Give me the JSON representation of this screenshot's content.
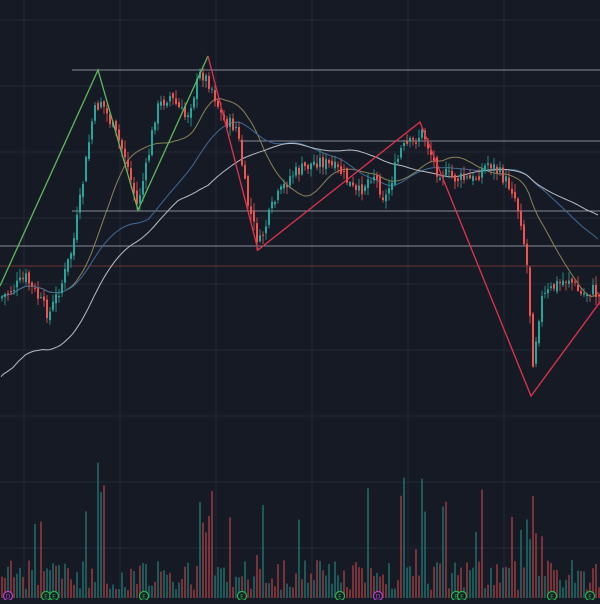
{
  "theme": {
    "background": "#161a25",
    "grid": "#232836",
    "up_color": "#26a69a",
    "down_color": "#ef5350",
    "sr_line": "#9aa0aa",
    "ma_fast": "#8a8458",
    "ma_mid": "#3f6b96",
    "ma_slow": "#b8bcc4",
    "zigzag_up": "#5fb85f",
    "zigzag_down": "#e0344c",
    "marker_earnings": "#2bb350",
    "marker_dividend": "#b544c8"
  },
  "event_markers": [
    {
      "type": "dividend",
      "letter": "D",
      "color": "#b544c8"
    },
    {
      "type": "earnings",
      "letter": "E",
      "color": "#2bb350"
    },
    {
      "type": "earnings",
      "letter": "E",
      "color": "#2bb350"
    },
    {
      "type": "earnings",
      "letter": "E",
      "color": "#2bb350"
    },
    {
      "type": "earnings",
      "letter": "E",
      "color": "#2bb350"
    },
    {
      "type": "earnings",
      "letter": "E",
      "color": "#2bb350"
    },
    {
      "type": "dividend",
      "letter": "D",
      "color": "#b544c8"
    },
    {
      "type": "earnings",
      "letter": "E",
      "color": "#2bb350"
    },
    {
      "type": "earnings",
      "letter": "E",
      "color": "#2bb350"
    },
    {
      "type": "earnings",
      "letter": "E",
      "color": "#2bb350"
    },
    {
      "type": "earnings",
      "letter": "E",
      "color": "#2bb350"
    }
  ]
}
